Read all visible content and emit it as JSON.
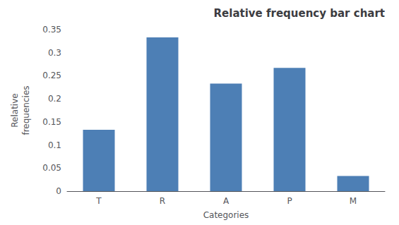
{
  "chart_data": {
    "type": "bar",
    "title": "Relative frequency bar chart",
    "xlabel": "Categories",
    "ylabel": [
      "Relative",
      "frequencies"
    ],
    "categories": [
      "T",
      "R",
      "A",
      "P",
      "M"
    ],
    "values": [
      0.133,
      0.333,
      0.233,
      0.267,
      0.033
    ],
    "color": "#4d7fb5",
    "ylim": [
      0,
      0.35
    ],
    "yticks": [
      0,
      0.05,
      0.1,
      0.15,
      0.2,
      0.25,
      0.3,
      0.35
    ],
    "grid": false
  }
}
